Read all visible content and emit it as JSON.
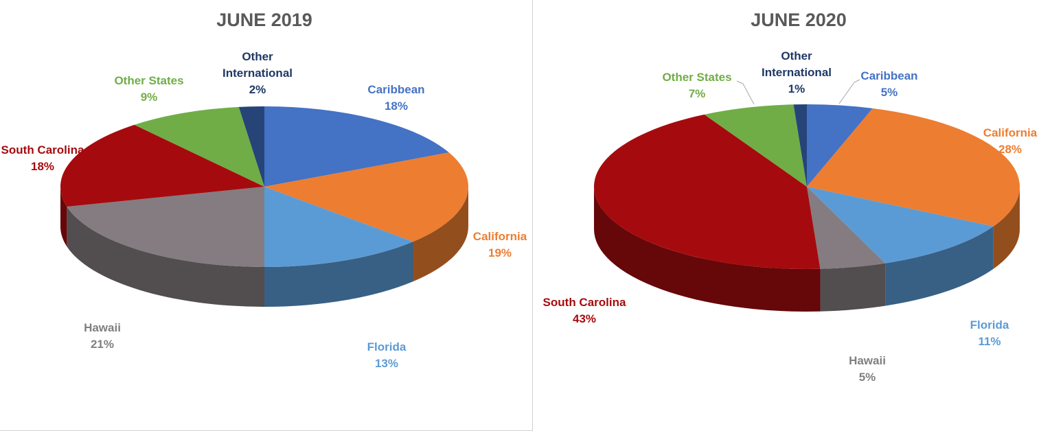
{
  "chart_data": [
    {
      "type": "pie",
      "title": "JUNE 2019",
      "categories": [
        "Caribbean",
        "California",
        "Florida",
        "Hawaii",
        "South Carolina",
        "Other States",
        "Other International"
      ],
      "values": [
        18,
        19,
        13,
        21,
        18,
        9,
        2
      ],
      "value_labels": [
        "18%",
        "19%",
        "13%",
        "21%",
        "18%",
        "9%",
        "2%"
      ],
      "colors": [
        "#4472c4",
        "#ed7d31",
        "#5b9bd5",
        "#847c80",
        "#a50b0e",
        "#70ad47",
        "#264478"
      ]
    },
    {
      "type": "pie",
      "title": "JUNE 2020",
      "categories": [
        "Caribbean",
        "California",
        "Florida",
        "Hawaii",
        "South Carolina",
        "Other States",
        "Other International"
      ],
      "values": [
        5,
        28,
        11,
        5,
        43,
        7,
        1
      ],
      "value_labels": [
        "5%",
        "28%",
        "11%",
        "5%",
        "43%",
        "7%",
        "1%"
      ],
      "colors": [
        "#4472c4",
        "#ed7d31",
        "#5b9bd5",
        "#847c80",
        "#a50b0e",
        "#70ad47",
        "#264478"
      ]
    }
  ]
}
